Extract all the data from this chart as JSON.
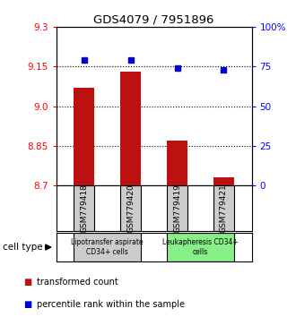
{
  "title": "GDS4079 / 7951896",
  "samples": [
    "GSM779418",
    "GSM779420",
    "GSM779419",
    "GSM779421"
  ],
  "bar_values": [
    9.07,
    9.13,
    8.87,
    8.73
  ],
  "percentile_values": [
    79,
    79,
    74,
    73
  ],
  "bar_color": "#bb1111",
  "percentile_color": "#0000cc",
  "ylim_left": [
    8.7,
    9.3
  ],
  "ylim_right": [
    0,
    100
  ],
  "yticks_left": [
    8.7,
    8.85,
    9.0,
    9.15,
    9.3
  ],
  "yticks_right": [
    0,
    25,
    50,
    75,
    100
  ],
  "ytick_labels_right": [
    "0",
    "25",
    "50",
    "75",
    "100%"
  ],
  "grid_values": [
    8.85,
    9.0,
    9.15
  ],
  "groups": [
    {
      "label": "Lipotransfer aspirate\nCD34+ cells",
      "indices": [
        0,
        1
      ],
      "color": "#cccccc"
    },
    {
      "label": "Leukapheresis CD34+\ncells",
      "indices": [
        2,
        3
      ],
      "color": "#88ee88"
    }
  ],
  "cell_type_label": "cell type",
  "legend_items": [
    {
      "label": "transformed count",
      "color": "#bb1111"
    },
    {
      "label": "percentile rank within the sample",
      "color": "#0000cc"
    }
  ],
  "bar_width": 0.45
}
